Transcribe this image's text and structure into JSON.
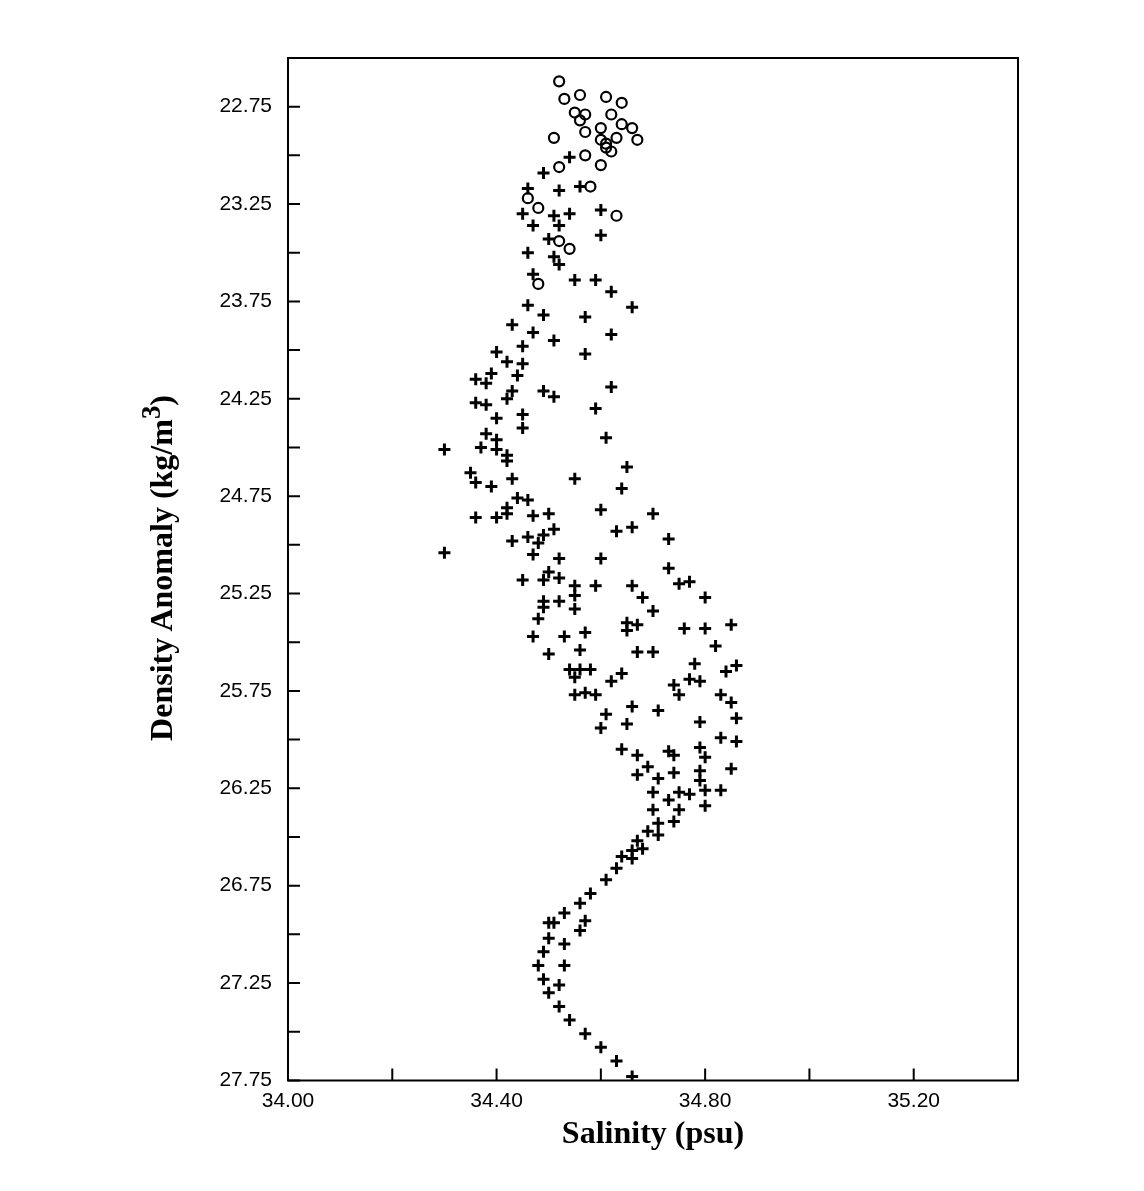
{
  "chart_data": {
    "type": "scatter",
    "xlabel": "Salinity (psu)",
    "ylabel": "Density Anomaly (kg/m$^{3}$)",
    "xlim": [
      34.0,
      35.4
    ],
    "ylim": [
      27.75,
      22.5
    ],
    "xticks": [
      {
        "value": 34,
        "label": "34.00"
      },
      {
        "value": 34.2,
        "label": null
      },
      {
        "value": 34.4,
        "label": "34.40"
      },
      {
        "value": 34.6,
        "label": null
      },
      {
        "value": 34.8,
        "label": "34.80"
      },
      {
        "value": 35,
        "label": null
      },
      {
        "value": 35.2,
        "label": "35.20"
      }
    ],
    "yticks": [
      22.75,
      {
        "value": 23,
        "label": null
      },
      23.25,
      {
        "value": 23.5,
        "label": null
      },
      23.75,
      {
        "value": 24,
        "label": null
      },
      24.25,
      {
        "value": 24.5,
        "label": null
      },
      24.75,
      {
        "value": 25,
        "label": null
      },
      25.25,
      {
        "value": 25.5,
        "label": null
      },
      25.75,
      {
        "value": 26,
        "label": null
      },
      26.25,
      {
        "value": 26.5,
        "label": null
      },
      26.75,
      {
        "value": 27,
        "label": null
      },
      27.25,
      {
        "value": 27.5,
        "label": null
      },
      27.75
    ],
    "series": [
      {
        "color": "#000000",
        "marker": "circle",
        "x": [
          34.52,
          34.53,
          34.56,
          34.61,
          34.64,
          34.55,
          34.57,
          34.62,
          34.56,
          34.64,
          34.66,
          34.67,
          34.57,
          34.63,
          34.51,
          34.61,
          34.57,
          34.62,
          34.6,
          34.52,
          34.58,
          34.46,
          34.48,
          34.63,
          34.52,
          34.54,
          34.48,
          34.6,
          34.6,
          34.61
        ],
        "values": [
          22.62,
          22.71,
          22.69,
          22.7,
          22.73,
          22.78,
          22.79,
          22.79,
          22.82,
          22.84,
          22.86,
          22.92,
          22.88,
          22.91,
          22.91,
          22.94,
          23.0,
          22.98,
          23.05,
          23.06,
          23.16,
          23.22,
          23.27,
          23.31,
          23.44,
          23.48,
          23.66,
          22.86,
          22.92,
          22.96
        ]
      },
      {
        "color": "#000000",
        "marker": "cross",
        "x": [
          34.54,
          34.49,
          34.46,
          34.52,
          34.56,
          34.6,
          34.45,
          34.51,
          34.54,
          34.47,
          34.52,
          34.6,
          34.5,
          34.46,
          34.51,
          34.52,
          34.47,
          34.55,
          34.59,
          34.62,
          34.66,
          34.46,
          34.49,
          34.57,
          34.43,
          34.62,
          34.47,
          34.51,
          34.45,
          34.57,
          34.4,
          34.45,
          34.42,
          34.39,
          34.36,
          34.44,
          34.38,
          34.62,
          34.49,
          34.51,
          34.43,
          34.36,
          34.38,
          34.42,
          34.59,
          34.45,
          34.4,
          34.38,
          34.45,
          34.61,
          34.4,
          34.3,
          34.37,
          34.4,
          34.42,
          34.65,
          34.42,
          34.35,
          34.36,
          34.39,
          34.43,
          34.55,
          34.64,
          34.44,
          34.46,
          34.42,
          34.36,
          34.4,
          34.42,
          34.47,
          34.5,
          34.6,
          34.7,
          34.51,
          34.66,
          34.63,
          34.73,
          34.43,
          34.46,
          34.48,
          34.49,
          34.47,
          34.3,
          34.52,
          34.6,
          34.73,
          34.5,
          34.45,
          34.49,
          34.52,
          34.55,
          34.59,
          34.66,
          34.75,
          34.77,
          34.68,
          34.8,
          34.49,
          34.52,
          34.55,
          34.49,
          34.55,
          34.7,
          34.48,
          34.65,
          34.67,
          34.85,
          34.65,
          34.76,
          34.8,
          34.47,
          34.53,
          34.57,
          34.82,
          34.5,
          34.56,
          34.67,
          34.7,
          34.78,
          34.86,
          34.84,
          34.54,
          34.56,
          34.58,
          34.55,
          34.64,
          34.62,
          34.77,
          34.79,
          34.74,
          34.75,
          34.55,
          34.57,
          34.59,
          34.83,
          34.85,
          34.66,
          34.71,
          34.86,
          34.61,
          34.65,
          34.79,
          34.6,
          34.83,
          34.86,
          34.64,
          34.73,
          34.79,
          34.67,
          34.74,
          34.8,
          34.69,
          34.85,
          34.67,
          34.74,
          34.79,
          34.71,
          34.79,
          34.83,
          34.8,
          34.7,
          34.75,
          34.77,
          34.73,
          34.8,
          34.75,
          34.7,
          34.74,
          34.71,
          34.69,
          34.67,
          34.66,
          34.64,
          34.71,
          34.68,
          34.66,
          34.63,
          34.61,
          34.58,
          34.56,
          34.53,
          34.51,
          34.5,
          34.57,
          34.56,
          34.5,
          34.49,
          34.48,
          34.49,
          34.5,
          34.52,
          34.54,
          34.57,
          34.6,
          34.63,
          34.66,
          34.53,
          34.53,
          34.52
        ],
        "values": [
          23.01,
          23.09,
          23.17,
          23.18,
          23.16,
          23.28,
          23.3,
          23.31,
          23.3,
          23.36,
          23.36,
          23.41,
          23.43,
          23.5,
          23.52,
          23.56,
          23.61,
          23.64,
          23.64,
          23.7,
          23.78,
          23.77,
          23.82,
          23.83,
          23.87,
          23.92,
          23.91,
          23.95,
          23.98,
          24.02,
          24.01,
          24.07,
          24.06,
          24.12,
          24.15,
          24.13,
          24.17,
          24.19,
          24.21,
          24.24,
          24.21,
          24.27,
          24.28,
          24.25,
          24.3,
          24.33,
          24.35,
          24.43,
          24.4,
          24.45,
          24.46,
          24.51,
          24.5,
          24.51,
          24.54,
          24.6,
          24.57,
          24.63,
          24.68,
          24.7,
          24.66,
          24.66,
          24.71,
          24.76,
          24.77,
          24.81,
          24.86,
          24.86,
          24.84,
          24.85,
          24.84,
          24.82,
          24.84,
          24.92,
          24.91,
          24.93,
          24.97,
          24.98,
          24.96,
          24.99,
          24.95,
          25.05,
          25.04,
          25.07,
          25.07,
          25.12,
          25.14,
          25.18,
          25.18,
          25.17,
          25.21,
          25.21,
          25.21,
          25.2,
          25.19,
          25.27,
          25.27,
          25.29,
          25.29,
          25.26,
          25.32,
          25.33,
          25.34,
          25.38,
          25.4,
          25.41,
          25.41,
          25.44,
          25.43,
          25.43,
          25.47,
          25.47,
          25.45,
          25.52,
          25.56,
          25.54,
          25.55,
          25.55,
          25.61,
          25.62,
          25.65,
          25.64,
          25.64,
          25.64,
          25.68,
          25.66,
          25.7,
          25.69,
          25.7,
          25.72,
          25.77,
          25.77,
          25.76,
          25.77,
          25.77,
          25.81,
          25.83,
          25.85,
          25.89,
          25.87,
          25.92,
          25.91,
          25.94,
          25.99,
          26.01,
          26.05,
          26.06,
          26.04,
          26.08,
          26.08,
          26.09,
          26.14,
          26.15,
          26.18,
          26.17,
          26.16,
          26.2,
          26.21,
          26.26,
          26.26,
          26.27,
          26.27,
          26.28,
          26.31,
          26.34,
          26.36,
          26.36,
          26.42,
          26.43,
          26.47,
          26.52,
          26.57,
          26.6,
          26.49,
          26.56,
          26.61,
          26.66,
          26.72,
          26.79,
          26.84,
          26.89,
          26.94,
          26.94,
          26.93,
          26.98,
          27.02,
          27.09,
          27.16,
          27.23,
          27.3,
          27.37,
          27.44,
          27.51,
          27.58,
          27.65,
          27.73,
          27.16,
          27.05,
          27.26
        ]
      }
    ]
  }
}
